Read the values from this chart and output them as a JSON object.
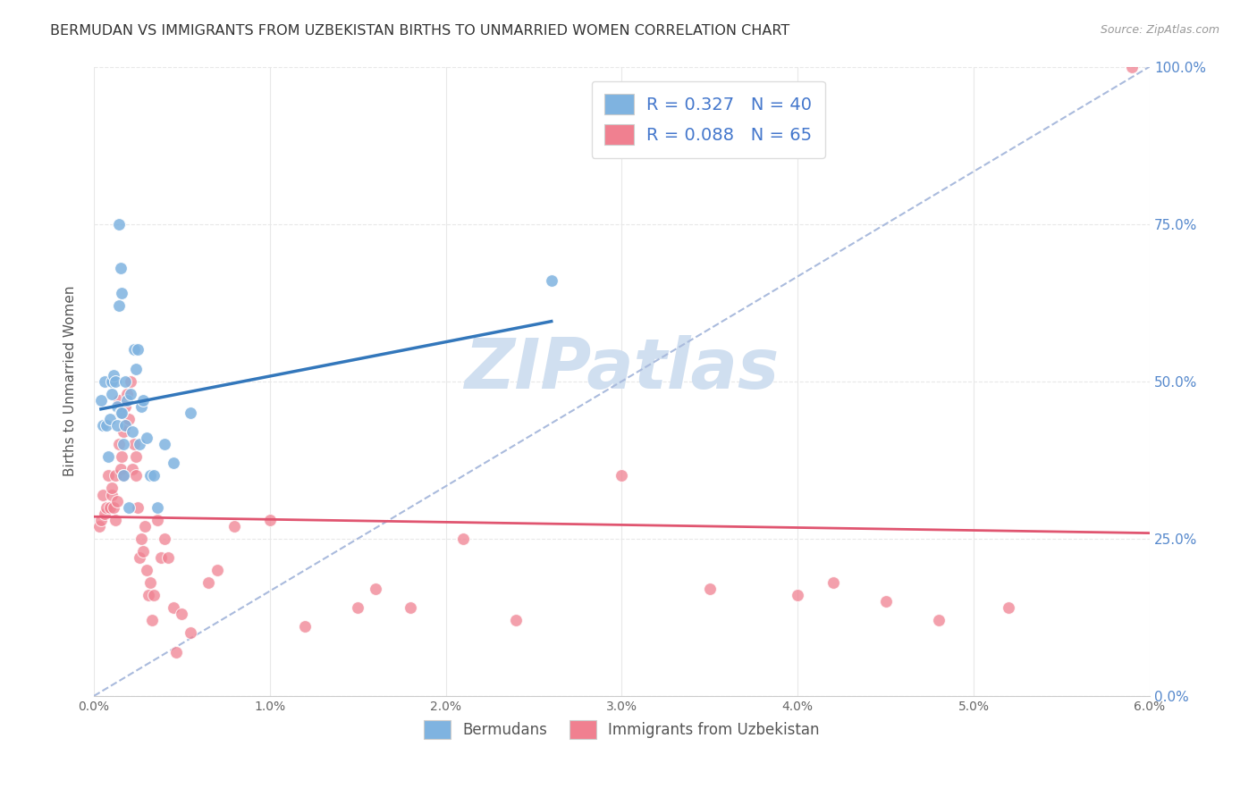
{
  "title": "BERMUDAN VS IMMIGRANTS FROM UZBEKISTAN BIRTHS TO UNMARRIED WOMEN CORRELATION CHART",
  "source": "Source: ZipAtlas.com",
  "ylabel": "Births to Unmarried Women",
  "xlim": [
    0.0,
    6.0
  ],
  "ylim": [
    0.0,
    100.0
  ],
  "right_yticks": [
    0.0,
    25.0,
    50.0,
    75.0,
    100.0
  ],
  "watermark": "ZIPatlas",
  "bermudans_x": [
    0.04,
    0.05,
    0.06,
    0.07,
    0.08,
    0.09,
    0.1,
    0.1,
    0.11,
    0.12,
    0.13,
    0.13,
    0.14,
    0.14,
    0.15,
    0.15,
    0.16,
    0.16,
    0.17,
    0.17,
    0.18,
    0.18,
    0.19,
    0.2,
    0.21,
    0.22,
    0.23,
    0.24,
    0.25,
    0.26,
    0.27,
    0.28,
    0.3,
    0.32,
    0.34,
    0.36,
    0.4,
    0.45,
    0.55,
    2.6
  ],
  "bermudans_y": [
    47,
    43,
    50,
    43,
    38,
    44,
    48,
    50,
    51,
    50,
    46,
    43,
    75,
    62,
    45,
    68,
    64,
    45,
    35,
    40,
    50,
    43,
    47,
    30,
    48,
    42,
    55,
    52,
    55,
    40,
    46,
    47,
    41,
    35,
    35,
    30,
    40,
    37,
    45,
    66
  ],
  "uzbekistan_x": [
    0.03,
    0.04,
    0.05,
    0.06,
    0.07,
    0.08,
    0.09,
    0.1,
    0.1,
    0.11,
    0.12,
    0.12,
    0.13,
    0.14,
    0.14,
    0.15,
    0.15,
    0.16,
    0.17,
    0.17,
    0.18,
    0.18,
    0.19,
    0.2,
    0.21,
    0.22,
    0.23,
    0.24,
    0.24,
    0.25,
    0.26,
    0.27,
    0.28,
    0.29,
    0.3,
    0.31,
    0.32,
    0.33,
    0.34,
    0.36,
    0.38,
    0.4,
    0.42,
    0.45,
    0.47,
    0.5,
    0.55,
    0.65,
    0.7,
    0.8,
    1.0,
    1.2,
    1.5,
    1.6,
    1.8,
    2.1,
    2.4,
    3.0,
    3.5,
    4.0,
    4.2,
    4.5,
    4.8,
    5.2,
    5.9
  ],
  "uzbekistan_y": [
    27,
    28,
    32,
    29,
    30,
    35,
    30,
    32,
    33,
    30,
    35,
    28,
    31,
    47,
    40,
    36,
    45,
    38,
    35,
    42,
    43,
    46,
    48,
    44,
    50,
    36,
    40,
    38,
    35,
    30,
    22,
    25,
    23,
    27,
    20,
    16,
    18,
    12,
    16,
    28,
    22,
    25,
    22,
    14,
    7,
    13,
    10,
    18,
    20,
    27,
    28,
    11,
    14,
    17,
    14,
    25,
    12,
    35,
    17,
    16,
    18,
    15,
    12,
    14,
    100
  ],
  "bermudans_color": "#7fb3e0",
  "uzbekistan_color": "#f08090",
  "trend_blue_color": "#3377bb",
  "trend_pink_color": "#e05570",
  "ref_line_color": "#aabbdd",
  "grid_color": "#e8e8e8",
  "background_color": "#ffffff",
  "title_color": "#333333",
  "right_axis_color": "#5588cc",
  "legend_text_color": "#4477cc",
  "watermark_color": "#d0dff0",
  "bottom_legend_color": "#555555"
}
